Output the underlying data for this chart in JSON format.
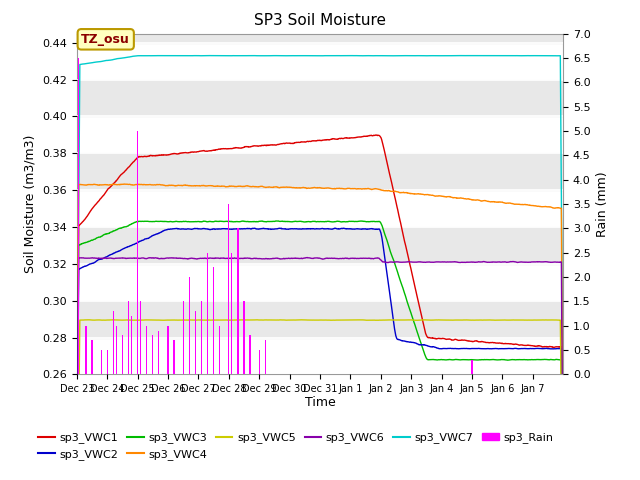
{
  "title": "SP3 Soil Moisture",
  "ylabel_left": "Soil Moisture (m3/m3)",
  "ylabel_right": "Rain (mm)",
  "xlabel": "Time",
  "ylim_left": [
    0.26,
    0.445
  ],
  "ylim_right": [
    0.0,
    7.0
  ],
  "x_tick_labels": [
    "Dec 23",
    "Dec 24",
    "Dec 25",
    "Dec 26",
    "Dec 27",
    "Dec 28",
    "Dec 29",
    "Dec 30",
    "Dec 31",
    "Jan 1",
    "Jan 2",
    "Jan 3",
    "Jan 4",
    "Jan 5",
    "Jan 6",
    "Jan 7"
  ],
  "annotation_text": "TZ_osu",
  "colors": {
    "VWC1": "#dd0000",
    "VWC2": "#0000cc",
    "VWC3": "#00bb00",
    "VWC4": "#ff8800",
    "VWC5": "#cccc00",
    "VWC6": "#8800aa",
    "VWC7": "#00cccc",
    "Rain": "#ff00ff"
  },
  "bg_stripe_color": "#e8e8e8",
  "grid_color": "#ffffff"
}
